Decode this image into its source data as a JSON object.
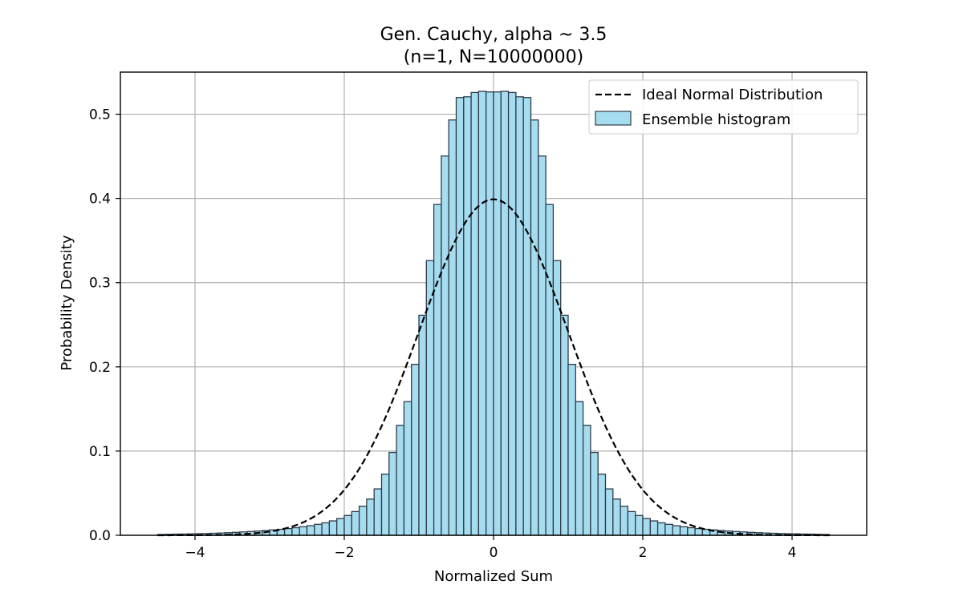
{
  "chart_data": {
    "type": "bar",
    "title": "Gen. Cauchy, alpha ~ 3.5",
    "subtitle": "(n=1, N=10000000)",
    "xlabel": "Normalized Sum",
    "ylabel": "Probability Density",
    "xlim": [
      -5,
      5
    ],
    "ylim": [
      0,
      0.55
    ],
    "xticks": [
      -4,
      -2,
      0,
      2,
      4
    ],
    "xtick_labels": [
      "−4",
      "−2",
      "0",
      "2",
      "4"
    ],
    "yticks": [
      0.0,
      0.1,
      0.2,
      0.3,
      0.4,
      0.5
    ],
    "ytick_labels": [
      "0.0",
      "0.1",
      "0.2",
      "0.3",
      "0.4",
      "0.5"
    ],
    "grid": true,
    "legend": "top-right",
    "colors": {
      "bar_fill": "#a6dcef",
      "bar_edge": "#2e3c48",
      "curve": "#000000",
      "grid": "#b0b0b0"
    },
    "series": [
      {
        "name": "Ensemble histogram",
        "kind": "histogram",
        "bin_range": [
          -4.5,
          4.5
        ],
        "values": [
          0.001,
          0.0012,
          0.0014,
          0.0015,
          0.0017,
          0.0019,
          0.0021,
          0.0024,
          0.0027,
          0.0031,
          0.0035,
          0.004,
          0.0045,
          0.0051,
          0.0057,
          0.0064,
          0.0071,
          0.008,
          0.009,
          0.0101,
          0.0114,
          0.013,
          0.0148,
          0.0171,
          0.0199,
          0.0235,
          0.0282,
          0.0345,
          0.043,
          0.0551,
          0.0726,
          0.0984,
          0.1306,
          0.1587,
          0.203,
          0.2613,
          0.3262,
          0.3928,
          0.4504,
          0.4932,
          0.5198,
          0.5207,
          0.5258,
          0.5272,
          0.5265,
          0.5265,
          0.5272,
          0.5258,
          0.5207,
          0.5198,
          0.4932,
          0.4504,
          0.3928,
          0.3262,
          0.2613,
          0.203,
          0.1587,
          0.1306,
          0.0984,
          0.0726,
          0.0551,
          0.043,
          0.0345,
          0.0282,
          0.0235,
          0.0199,
          0.0171,
          0.0148,
          0.013,
          0.0114,
          0.0101,
          0.009,
          0.008,
          0.0071,
          0.0064,
          0.0057,
          0.0051,
          0.0045,
          0.004,
          0.0035,
          0.0031,
          0.0027,
          0.0024,
          0.0021,
          0.0019,
          0.0017,
          0.0015,
          0.0014,
          0.0012,
          0.001
        ]
      },
      {
        "name": "Ideal Normal Distribution",
        "kind": "line",
        "style": "dashed",
        "function": "normal_pdf",
        "mean": 0,
        "std": 1
      }
    ]
  }
}
